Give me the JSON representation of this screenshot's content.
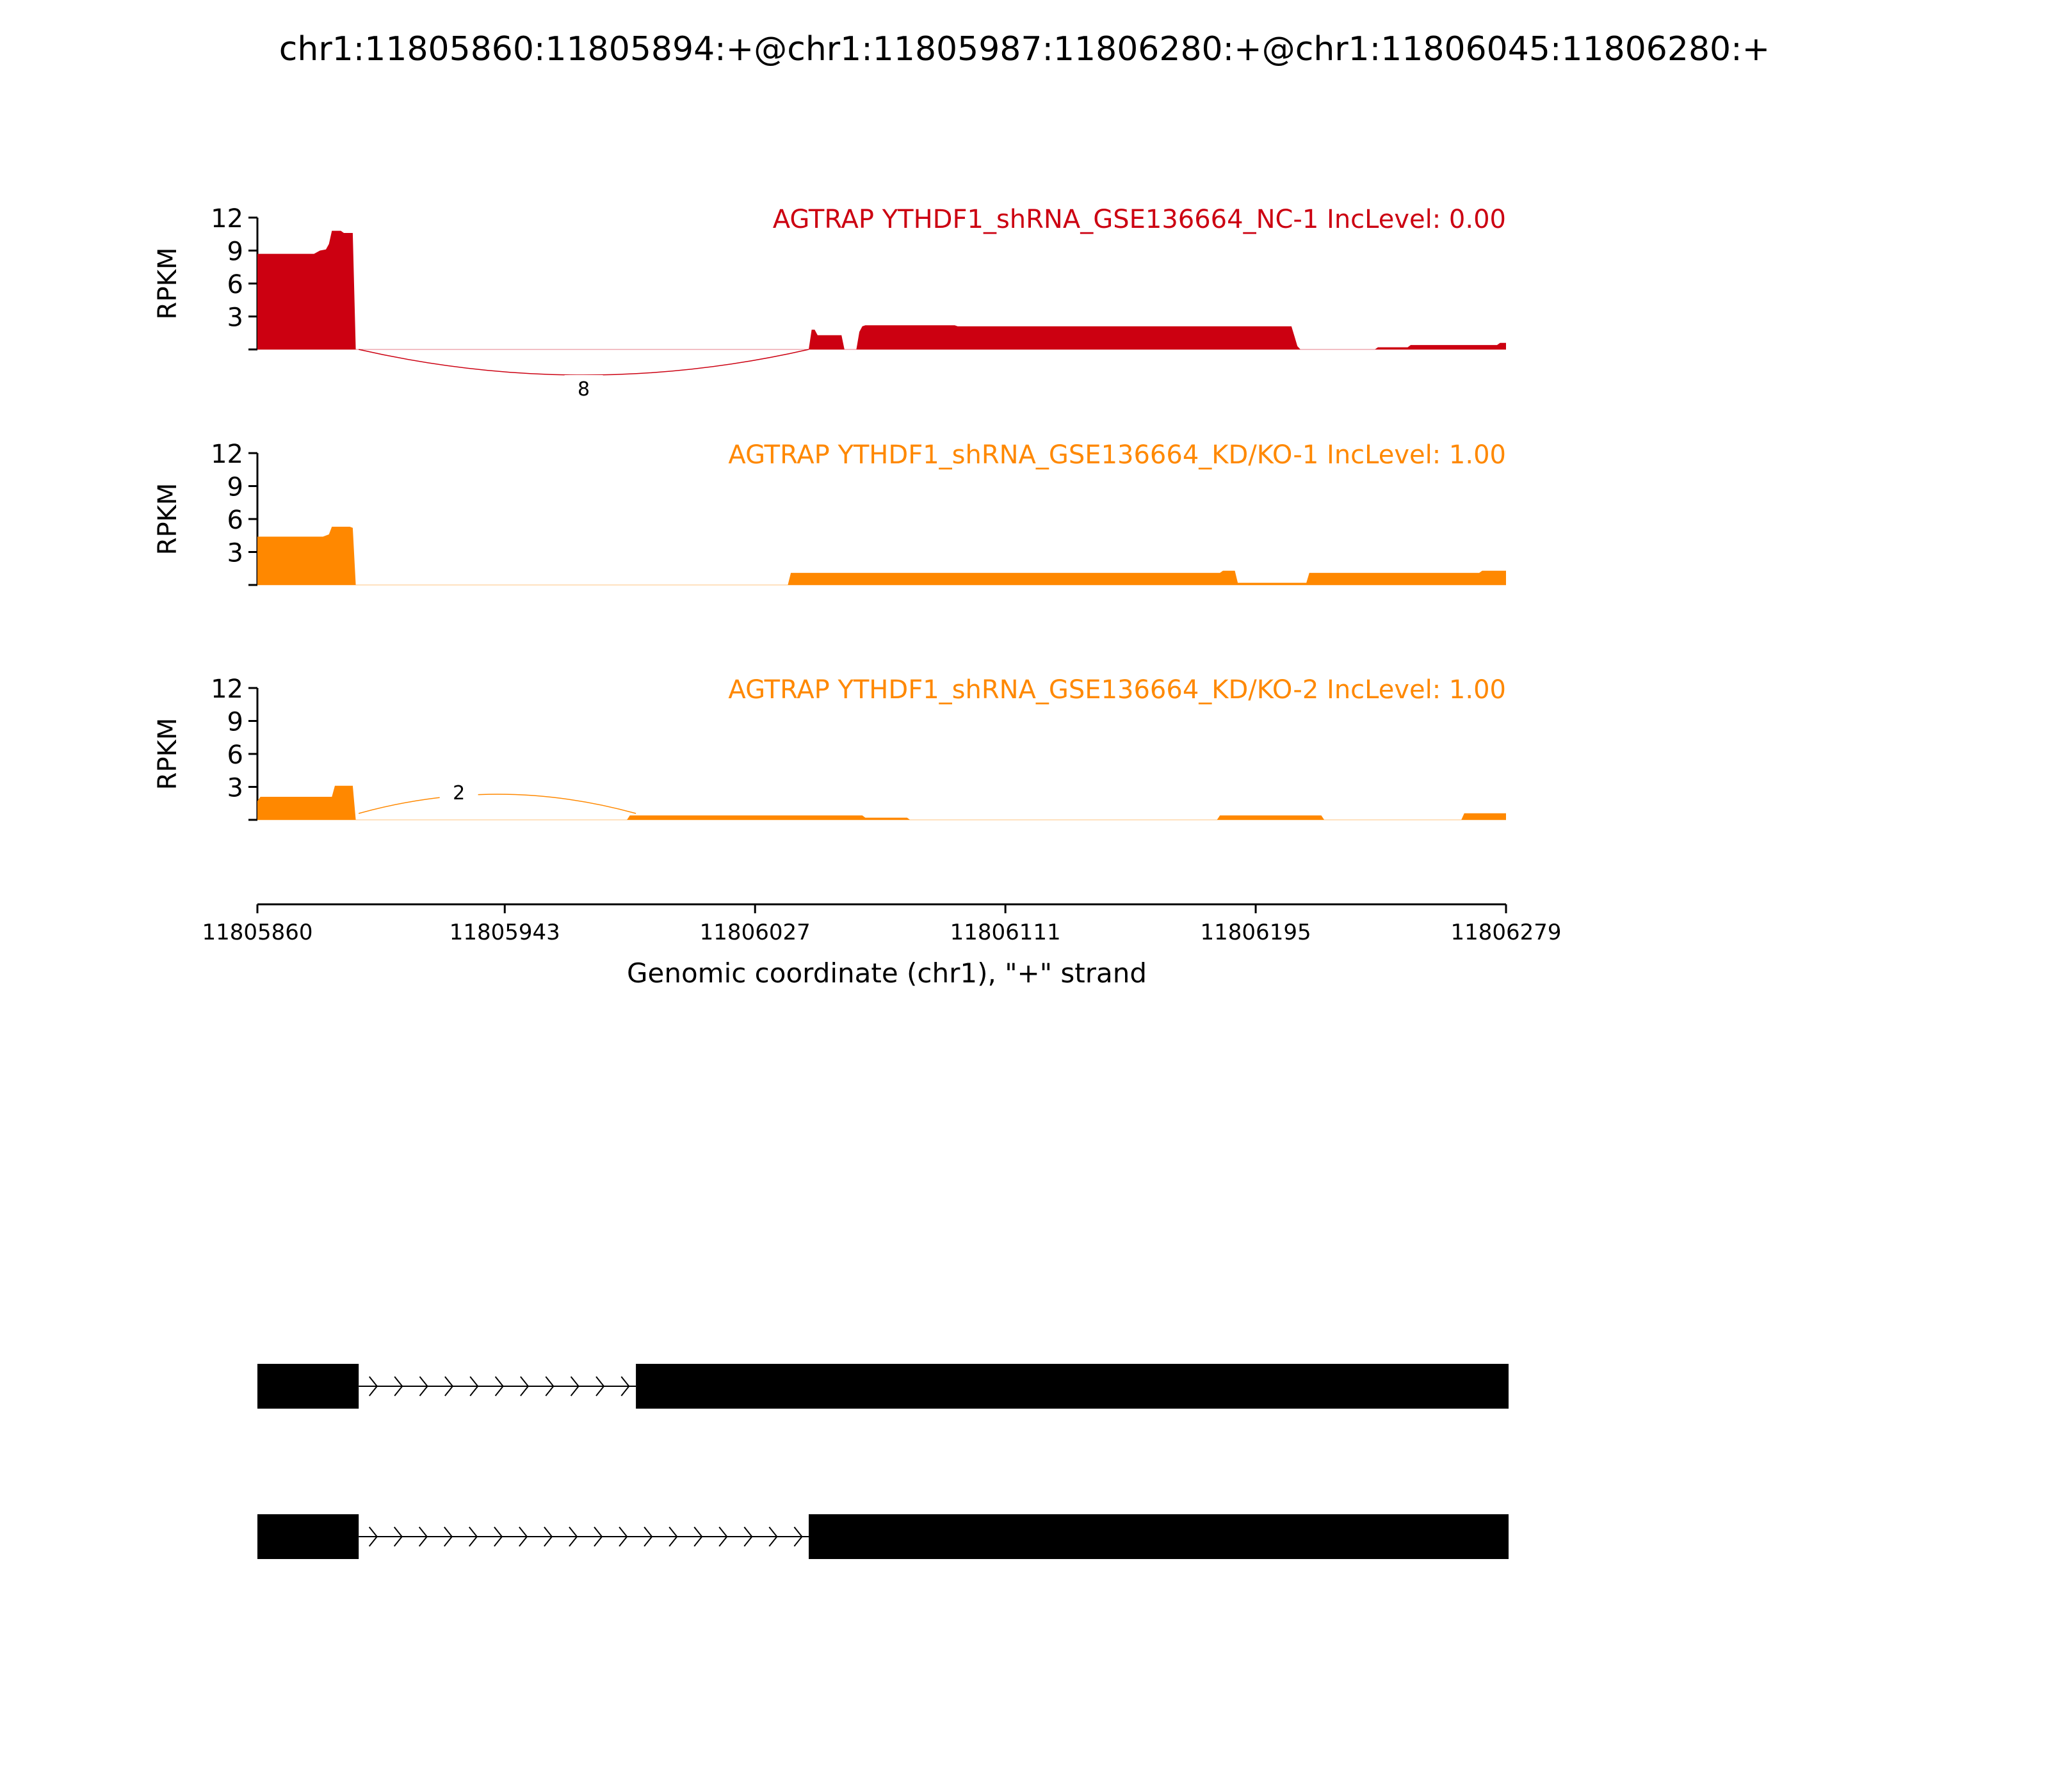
{
  "chart_data": {
    "type": "area",
    "title": "chr1:11805860:11805894:+@chr1:11805987:11806280:+@chr1:11806045:11806280:+",
    "ylabel": "RPKM",
    "xlabel": "Genomic coordinate (chr1), \"+\" strand",
    "xlim": [
      11805860,
      11806279
    ],
    "ylim": [
      0,
      12
    ],
    "x_ticks": [
      "11805860",
      "11805943",
      "11806027",
      "11806111",
      "11806195",
      "11806279"
    ],
    "y_ticks": [
      "12",
      "9",
      "6",
      "3"
    ],
    "grid": false,
    "series": [
      {
        "name": "AGTRAP YTHDF1_shRNA_GSE136664_NC-1 IncLevel: 0.00",
        "color": "#cc0011",
        "coverage": [
          [
            11805860,
            8.7
          ],
          [
            11805879,
            8.7
          ],
          [
            11805881,
            9.0
          ],
          [
            11805883,
            9.1
          ],
          [
            11805884,
            9.6
          ],
          [
            11805885,
            10.8
          ],
          [
            11805888,
            10.8
          ],
          [
            11805889,
            10.6
          ],
          [
            11805892,
            10.6
          ],
          [
            11805893,
            0
          ],
          [
            11806045,
            0
          ],
          [
            11806046,
            1.8
          ],
          [
            11806047,
            1.8
          ],
          [
            11806048,
            1.3
          ],
          [
            11806056,
            1.3
          ],
          [
            11806057,
            0
          ],
          [
            11806061,
            0
          ],
          [
            11806062,
            1.6
          ],
          [
            11806063,
            2.1
          ],
          [
            11806064,
            2.2
          ],
          [
            11806094,
            2.2
          ],
          [
            11806095,
            2.1
          ],
          [
            11806207,
            2.1
          ],
          [
            11806208,
            1.2
          ],
          [
            11806209,
            0.3
          ],
          [
            11806210,
            0
          ],
          [
            11806235,
            0
          ],
          [
            11806236,
            0.2
          ],
          [
            11806246,
            0.2
          ],
          [
            11806247,
            0.4
          ],
          [
            11806276,
            0.4
          ],
          [
            11806277,
            0.6
          ],
          [
            11806279,
            0.6
          ],
          [
            11806279,
            0
          ]
        ],
        "junctions": [
          {
            "from": 11805894,
            "to": 11806045,
            "count": "8"
          }
        ]
      },
      {
        "name": "AGTRAP YTHDF1_shRNA_GSE136664_KD/KO-1 IncLevel: 1.00",
        "color": "#ff8800",
        "coverage": [
          [
            11805860,
            4.4
          ],
          [
            11805882,
            4.4
          ],
          [
            11805884,
            4.6
          ],
          [
            11805885,
            5.3
          ],
          [
            11805891,
            5.3
          ],
          [
            11805892,
            5.2
          ],
          [
            11805893,
            0
          ],
          [
            11806038,
            0
          ],
          [
            11806039,
            1.1
          ],
          [
            11806183,
            1.1
          ],
          [
            11806184,
            1.3
          ],
          [
            11806188,
            1.3
          ],
          [
            11806189,
            0.2
          ],
          [
            11806212,
            0.2
          ],
          [
            11806213,
            1.1
          ],
          [
            11806270,
            1.1
          ],
          [
            11806271,
            1.3
          ],
          [
            11806279,
            1.3
          ],
          [
            11806279,
            0
          ]
        ],
        "junctions": []
      },
      {
        "name": "AGTRAP YTHDF1_shRNA_GSE136664_KD/KO-2 IncLevel: 1.00",
        "color": "#ff8800",
        "coverage": [
          [
            11805860,
            1.7
          ],
          [
            11805861,
            2.1
          ],
          [
            11805885,
            2.1
          ],
          [
            11805886,
            3.1
          ],
          [
            11805892,
            3.1
          ],
          [
            11805893,
            0
          ],
          [
            11805984,
            0
          ],
          [
            11805985,
            0.4
          ],
          [
            11806063,
            0.4
          ],
          [
            11806064,
            0.2
          ],
          [
            11806078,
            0.2
          ],
          [
            11806079,
            0
          ],
          [
            11806182,
            0
          ],
          [
            11806183,
            0.4
          ],
          [
            11806217,
            0.4
          ],
          [
            11806218,
            0
          ],
          [
            11806264,
            0
          ],
          [
            11806265,
            0.6
          ],
          [
            11806279,
            0.6
          ],
          [
            11806279,
            0
          ]
        ],
        "junctions": [
          {
            "from": 11805894,
            "to": 11805987,
            "count": "2"
          }
        ]
      }
    ],
    "isoforms": [
      {
        "exons": [
          [
            11805860,
            11805894
          ],
          [
            11805987,
            11806280
          ]
        ],
        "intron_arrows": 11
      },
      {
        "exons": [
          [
            11805860,
            11805894
          ],
          [
            11806045,
            11806280
          ]
        ],
        "intron_arrows": 18
      }
    ]
  }
}
